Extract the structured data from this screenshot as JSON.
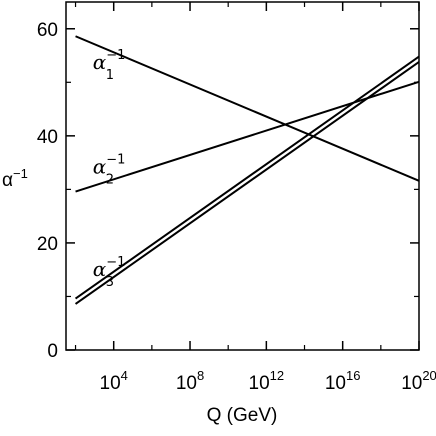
{
  "chart_data": {
    "type": "line",
    "xlabel": "Q  (GeV)",
    "ylabel": "α",
    "ylabel_sup": "−1",
    "x_scale": "log10",
    "xlim_exponent": [
      1.5,
      20
    ],
    "ylim": [
      0,
      65
    ],
    "x_ticks": [
      {
        "base": "10",
        "exp": "4",
        "exp_value": 4
      },
      {
        "base": "10",
        "exp": "8",
        "exp_value": 8
      },
      {
        "base": "10",
        "exp": "12",
        "exp_value": 12
      },
      {
        "base": "10",
        "exp": "16",
        "exp_value": 16
      },
      {
        "base": "10",
        "exp": "20",
        "exp_value": 20
      }
    ],
    "y_ticks": [
      {
        "label": "0",
        "value": 0
      },
      {
        "label": "20",
        "value": 20
      },
      {
        "label": "40",
        "value": 40
      },
      {
        "label": "60",
        "value": 60
      }
    ],
    "grid": false,
    "series": [
      {
        "name": "α",
        "sub": "1",
        "sup": "−1",
        "x_exponent": [
          2,
          20
        ],
        "values": [
          58.6,
          31.6
        ]
      },
      {
        "name": "α",
        "sub": "2",
        "sup": "−1",
        "x_exponent": [
          2,
          20
        ],
        "values": [
          29.6,
          50.1
        ]
      },
      {
        "name": "α",
        "sub": "3",
        "sup": "−1",
        "x_exponent": [
          2,
          20
        ],
        "values": [
          8.6,
          53.8
        ]
      },
      {
        "name": "α",
        "sub": "3",
        "sup": "−1",
        "x_exponent": [
          2,
          20
        ],
        "values": [
          9.6,
          54.8
        ]
      }
    ],
    "series_labels": [
      {
        "series": 0,
        "at_exponent": 2.9,
        "at_value": 52.5
      },
      {
        "series": 1,
        "at_exponent": 2.9,
        "at_value": 33.0
      },
      {
        "series": 2,
        "at_exponent": 2.9,
        "at_value": 13.8
      }
    ]
  }
}
